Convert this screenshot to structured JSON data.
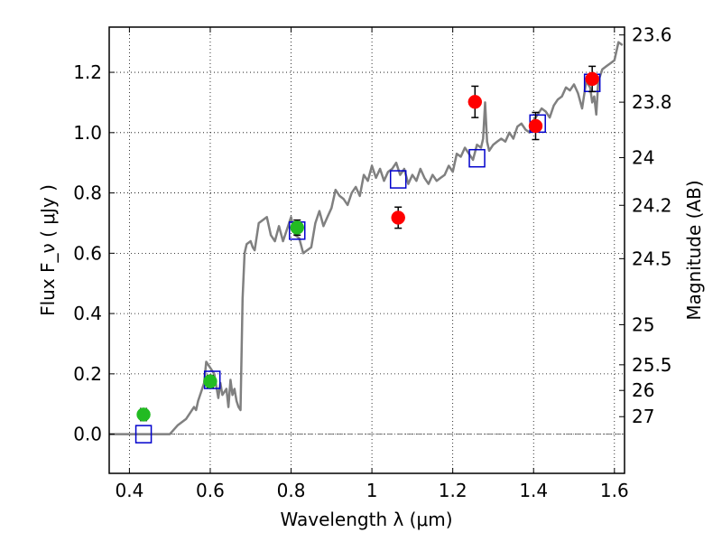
{
  "chart_data": {
    "type": "scatter",
    "xlabel": "Wavelength  λ (μm)",
    "ylabel": "Flux  F_ν  ( μJy )",
    "y2label": "Magnitude (AB)",
    "xlim": [
      0.35,
      1.625
    ],
    "ylim": [
      -0.13,
      1.35
    ],
    "grid": true,
    "x_ticks": [
      0.4,
      0.6,
      0.8,
      1.0,
      1.2,
      1.4,
      1.6
    ],
    "x_tick_labels": [
      "0.4",
      "0.6",
      "0.8",
      "1",
      "1.2",
      "1.4",
      "1.6"
    ],
    "y_ticks": [
      0.0,
      0.2,
      0.4,
      0.6,
      0.8,
      1.0,
      1.2
    ],
    "y_tick_labels": [
      "0.0",
      "0.2",
      "0.4",
      "0.6",
      "0.8",
      "1.0",
      "1.2"
    ],
    "y2_ticks": [
      {
        "label": "23.6",
        "flux": 1.324
      },
      {
        "label": "23.8",
        "flux": 1.101
      },
      {
        "label": "24",
        "flux": 0.917
      },
      {
        "label": "24.2",
        "flux": 0.759
      },
      {
        "label": "24.5",
        "flux": 0.582
      },
      {
        "label": "25",
        "flux": 0.363
      },
      {
        "label": "25.5",
        "flux": 0.23
      },
      {
        "label": "26",
        "flux": 0.145
      },
      {
        "label": "27",
        "flux": 0.058
      }
    ],
    "series": [
      {
        "kind": "line",
        "color": "#808080",
        "x": [
          0.35,
          0.5,
          0.52,
          0.54,
          0.55,
          0.56,
          0.565,
          0.57,
          0.58,
          0.585,
          0.59,
          0.6,
          0.61,
          0.62,
          0.625,
          0.63,
          0.64,
          0.645,
          0.65,
          0.655,
          0.66,
          0.665,
          0.67,
          0.675,
          0.68,
          0.685,
          0.69,
          0.7,
          0.705,
          0.71,
          0.72,
          0.73,
          0.74,
          0.75,
          0.76,
          0.77,
          0.78,
          0.79,
          0.8,
          0.81,
          0.82,
          0.83,
          0.84,
          0.85,
          0.86,
          0.87,
          0.88,
          0.89,
          0.9,
          0.91,
          0.92,
          0.93,
          0.94,
          0.95,
          0.96,
          0.97,
          0.98,
          0.99,
          1.0,
          1.01,
          1.02,
          1.03,
          1.04,
          1.05,
          1.06,
          1.07,
          1.08,
          1.09,
          1.1,
          1.11,
          1.12,
          1.13,
          1.14,
          1.15,
          1.16,
          1.17,
          1.18,
          1.19,
          1.2,
          1.21,
          1.22,
          1.23,
          1.24,
          1.25,
          1.26,
          1.27,
          1.275,
          1.28,
          1.285,
          1.29,
          1.3,
          1.31,
          1.32,
          1.33,
          1.34,
          1.35,
          1.36,
          1.37,
          1.38,
          1.39,
          1.4,
          1.41,
          1.42,
          1.43,
          1.44,
          1.45,
          1.46,
          1.47,
          1.48,
          1.49,
          1.5,
          1.51,
          1.52,
          1.53,
          1.54,
          1.545,
          1.55,
          1.555,
          1.56,
          1.57,
          1.58,
          1.59,
          1.6,
          1.61,
          1.62
        ],
        "y": [
          0.0,
          0.0,
          0.03,
          0.05,
          0.07,
          0.09,
          0.08,
          0.11,
          0.15,
          0.17,
          0.24,
          0.22,
          0.2,
          0.12,
          0.17,
          0.13,
          0.15,
          0.09,
          0.18,
          0.13,
          0.15,
          0.11,
          0.09,
          0.08,
          0.45,
          0.6,
          0.63,
          0.64,
          0.62,
          0.61,
          0.7,
          0.71,
          0.72,
          0.66,
          0.64,
          0.69,
          0.64,
          0.68,
          0.72,
          0.66,
          0.65,
          0.6,
          0.61,
          0.62,
          0.7,
          0.74,
          0.69,
          0.72,
          0.75,
          0.81,
          0.79,
          0.78,
          0.76,
          0.8,
          0.82,
          0.79,
          0.86,
          0.84,
          0.89,
          0.85,
          0.88,
          0.84,
          0.87,
          0.88,
          0.9,
          0.86,
          0.88,
          0.83,
          0.86,
          0.84,
          0.88,
          0.85,
          0.83,
          0.86,
          0.84,
          0.85,
          0.86,
          0.89,
          0.87,
          0.93,
          0.92,
          0.95,
          0.93,
          0.91,
          0.96,
          0.95,
          0.98,
          1.1,
          0.97,
          0.94,
          0.96,
          0.97,
          0.98,
          0.97,
          1.0,
          0.98,
          1.02,
          1.03,
          1.01,
          1.0,
          1.04,
          1.06,
          1.08,
          1.07,
          1.05,
          1.09,
          1.11,
          1.12,
          1.15,
          1.14,
          1.16,
          1.13,
          1.08,
          1.17,
          1.15,
          1.1,
          1.12,
          1.06,
          1.17,
          1.21,
          1.22,
          1.23,
          1.24,
          1.3,
          1.29
        ]
      },
      {
        "kind": "open-square",
        "color": "#0000cc",
        "x": [
          0.435,
          0.605,
          0.815,
          1.065,
          1.26,
          1.41,
          1.545
        ],
        "y": [
          0.0,
          0.18,
          0.675,
          0.845,
          0.915,
          1.03,
          1.165
        ]
      },
      {
        "kind": "filled-circle",
        "color": "#22bb22",
        "x": [
          0.435,
          0.6,
          0.815
        ],
        "y": [
          0.065,
          0.175,
          0.685
        ],
        "yerr": [
          0.02,
          0.02,
          0.025
        ]
      },
      {
        "kind": "filled-circle",
        "color": "#ff0000",
        "x": [
          1.065,
          1.255,
          1.405,
          1.545
        ],
        "y": [
          0.718,
          1.102,
          1.022,
          1.178
        ],
        "yerr": [
          0.035,
          0.052,
          0.045,
          0.042
        ]
      }
    ]
  }
}
